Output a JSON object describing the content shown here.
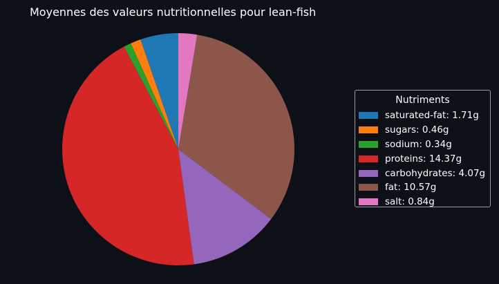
{
  "chart_data": {
    "type": "pie",
    "title": "Moyennes des valeurs nutritionnelles pour lean-fish",
    "legend_title": "Nutriments",
    "legend_position": "right",
    "start_angle_deg": 90,
    "direction": "counterclockwise",
    "slices": [
      {
        "label": "saturated-fat",
        "value": 1.71,
        "legend": "saturated-fat: 1.71g",
        "color": "#1f77b4"
      },
      {
        "label": "sugars",
        "value": 0.46,
        "legend": "sugars: 0.46g",
        "color": "#ff7f0e"
      },
      {
        "label": "sodium",
        "value": 0.34,
        "legend": "sodium: 0.34g",
        "color": "#2ca02c"
      },
      {
        "label": "proteins",
        "value": 14.37,
        "legend": "proteins: 14.37g",
        "color": "#d62728"
      },
      {
        "label": "carbohydrates",
        "value": 4.07,
        "legend": "carbohydrates: 4.07g",
        "color": "#9467bd"
      },
      {
        "label": "fat",
        "value": 10.57,
        "legend": "fat: 10.57g",
        "color": "#8c564b"
      },
      {
        "label": "salt",
        "value": 0.84,
        "legend": "salt: 0.84g",
        "color": "#e377c2"
      }
    ]
  }
}
